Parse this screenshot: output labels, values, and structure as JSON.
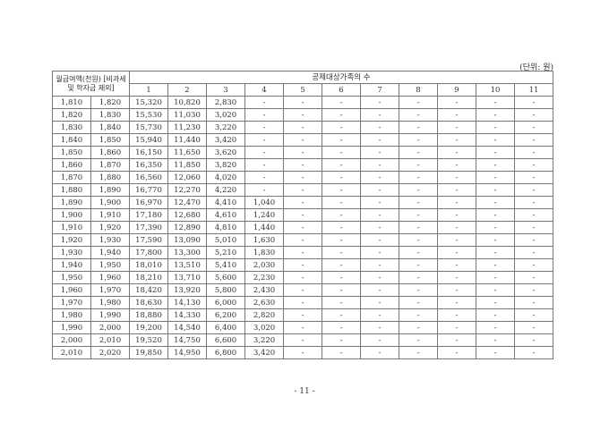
{
  "unit_note": "(단위: 원)",
  "header": {
    "income_label": "월급여액(천원) [비과세 및 학자금 제외]",
    "family_label": "공제대상가족의 수",
    "family_counts": [
      "1",
      "2",
      "3",
      "4",
      "5",
      "6",
      "7",
      "8",
      "9",
      "10",
      "11"
    ]
  },
  "rows": [
    [
      "1,810",
      "1,820",
      "15,320",
      "10,820",
      "2,830",
      "-",
      "-",
      "-",
      "-",
      "-",
      "-",
      "-",
      "-"
    ],
    [
      "1,820",
      "1,830",
      "15,530",
      "11,030",
      "3,020",
      "-",
      "-",
      "-",
      "-",
      "-",
      "-",
      "-",
      "-"
    ],
    [
      "1,830",
      "1,840",
      "15,730",
      "11,230",
      "3,220",
      "-",
      "-",
      "-",
      "-",
      "-",
      "-",
      "-",
      "-"
    ],
    [
      "1,840",
      "1,850",
      "15,940",
      "11,440",
      "3,420",
      "-",
      "-",
      "-",
      "-",
      "-",
      "-",
      "-",
      "-"
    ],
    [
      "1,850",
      "1,860",
      "16,150",
      "11,650",
      "3,620",
      "-",
      "-",
      "-",
      "-",
      "-",
      "-",
      "-",
      "-"
    ],
    [
      "1,860",
      "1,870",
      "16,350",
      "11,850",
      "3,820",
      "-",
      "-",
      "-",
      "-",
      "-",
      "-",
      "-",
      "-"
    ],
    [
      "1,870",
      "1,880",
      "16,560",
      "12,060",
      "4,020",
      "-",
      "-",
      "-",
      "-",
      "-",
      "-",
      "-",
      "-"
    ],
    [
      "1,880",
      "1,890",
      "16,770",
      "12,270",
      "4,220",
      "-",
      "-",
      "-",
      "-",
      "-",
      "-",
      "-",
      "-"
    ],
    [
      "1,890",
      "1,900",
      "16,970",
      "12,470",
      "4,410",
      "1,040",
      "-",
      "-",
      "-",
      "-",
      "-",
      "-",
      "-"
    ],
    [
      "1,900",
      "1,910",
      "17,180",
      "12,680",
      "4,610",
      "1,240",
      "-",
      "-",
      "-",
      "-",
      "-",
      "-",
      "-"
    ],
    [
      "1,910",
      "1,920",
      "17,390",
      "12,890",
      "4,810",
      "1,440",
      "-",
      "-",
      "-",
      "-",
      "-",
      "-",
      "-"
    ],
    [
      "1,920",
      "1,930",
      "17,590",
      "13,090",
      "5,010",
      "1,630",
      "-",
      "-",
      "-",
      "-",
      "-",
      "-",
      "-"
    ],
    [
      "1,930",
      "1,940",
      "17,800",
      "13,300",
      "5,210",
      "1,830",
      "-",
      "-",
      "-",
      "-",
      "-",
      "-",
      "-"
    ],
    [
      "1,940",
      "1,950",
      "18,010",
      "13,510",
      "5,410",
      "2,030",
      "-",
      "-",
      "-",
      "-",
      "-",
      "-",
      "-"
    ],
    [
      "1,950",
      "1,960",
      "18,210",
      "13,710",
      "5,600",
      "2,230",
      "-",
      "-",
      "-",
      "-",
      "-",
      "-",
      "-"
    ],
    [
      "1,960",
      "1,970",
      "18,420",
      "13,920",
      "5,800",
      "2,430",
      "-",
      "-",
      "-",
      "-",
      "-",
      "-",
      "-"
    ],
    [
      "1,970",
      "1,980",
      "18,630",
      "14,130",
      "6,000",
      "2,630",
      "-",
      "-",
      "-",
      "-",
      "-",
      "-",
      "-"
    ],
    [
      "1,980",
      "1,990",
      "18,880",
      "14,330",
      "6,200",
      "2,820",
      "-",
      "-",
      "-",
      "-",
      "-",
      "-",
      "-"
    ],
    [
      "1,990",
      "2,000",
      "19,200",
      "14,540",
      "6,400",
      "3,020",
      "-",
      "-",
      "-",
      "-",
      "-",
      "-",
      "-"
    ],
    [
      "2,000",
      "2,010",
      "19,520",
      "14,750",
      "6,600",
      "3,220",
      "-",
      "-",
      "-",
      "-",
      "-",
      "-",
      "-"
    ],
    [
      "2,010",
      "2,020",
      "19,850",
      "14,950",
      "6,800",
      "3,420",
      "-",
      "-",
      "-",
      "-",
      "-",
      "-",
      "-"
    ]
  ],
  "page_number": "- 11 -"
}
